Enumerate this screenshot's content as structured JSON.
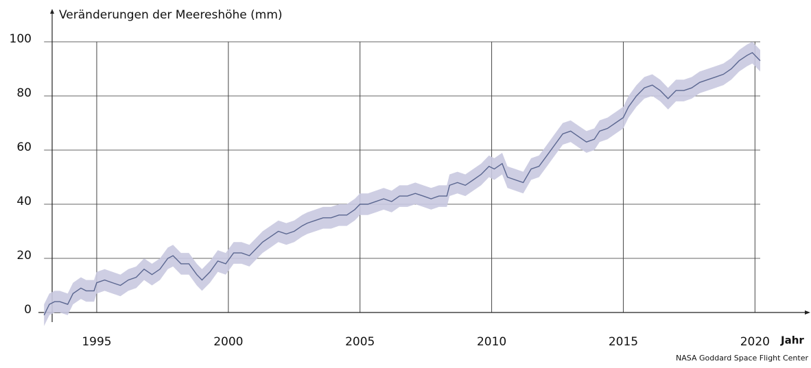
{
  "chart_data": {
    "type": "line",
    "title": "Veränderungen der Meereshöhe (mm)",
    "x_label": "Jahr",
    "source": "NASA Goddard Space Flight Center",
    "x": [
      1993.0,
      1993.2,
      1993.4,
      1993.6,
      1993.9,
      1994.1,
      1994.4,
      1994.6,
      1994.9,
      1995.0,
      1995.3,
      1995.6,
      1995.9,
      1996.2,
      1996.5,
      1996.8,
      1997.1,
      1997.4,
      1997.7,
      1997.9,
      1998.2,
      1998.5,
      1998.8,
      1999.0,
      1999.3,
      1999.6,
      1999.9,
      2000.2,
      2000.5,
      2000.8,
      2001.0,
      2001.3,
      2001.6,
      2001.9,
      2002.2,
      2002.5,
      2002.8,
      2003.0,
      2003.3,
      2003.6,
      2003.9,
      2004.2,
      2004.5,
      2004.8,
      2005.0,
      2005.3,
      2005.6,
      2005.9,
      2006.2,
      2006.5,
      2006.8,
      2007.1,
      2007.4,
      2007.7,
      2008.0,
      2008.3,
      2008.4,
      2008.7,
      2009.0,
      2009.3,
      2009.6,
      2009.9,
      2010.1,
      2010.4,
      2010.6,
      2010.9,
      2011.2,
      2011.5,
      2011.8,
      2012.1,
      2012.4,
      2012.7,
      2013.0,
      2013.3,
      2013.6,
      2013.9,
      2014.1,
      2014.4,
      2014.7,
      2015.0,
      2015.2,
      2015.5,
      2015.8,
      2016.1,
      2016.4,
      2016.7,
      2017.0,
      2017.3,
      2017.6,
      2017.9,
      2018.2,
      2018.5,
      2018.8,
      2019.1,
      2019.4,
      2019.7,
      2019.9,
      2020.1,
      2020.2
    ],
    "series": [
      {
        "color": "#5a6690",
        "band_color": "#c9c9e0",
        "values": [
          -1,
          3,
          4,
          4,
          3,
          7,
          9,
          8,
          8,
          11,
          12,
          11,
          10,
          12,
          13,
          16,
          14,
          16,
          20,
          21,
          18,
          18,
          14,
          12,
          15,
          19,
          18,
          22,
          22,
          21,
          23,
          26,
          28,
          30,
          29,
          30,
          32,
          33,
          34,
          35,
          35,
          36,
          36,
          38,
          40,
          40,
          41,
          42,
          41,
          43,
          43,
          44,
          43,
          42,
          43,
          43,
          47,
          48,
          47,
          49,
          51,
          54,
          53,
          55,
          50,
          49,
          48,
          53,
          54,
          58,
          62,
          66,
          67,
          65,
          63,
          64,
          67,
          68,
          70,
          72,
          76,
          80,
          83,
          84,
          82,
          79,
          82,
          82,
          83,
          85,
          86,
          87,
          88,
          90,
          93,
          95,
          96,
          94,
          93
        ]
      }
    ],
    "band_halfwidth": 4,
    "xlim": [
      1993,
      2020.2
    ],
    "xticks": [
      1995,
      2000,
      2005,
      2010,
      2015,
      2020
    ],
    "ylim": [
      0,
      100
    ],
    "yticks": [
      0,
      20,
      40,
      60,
      80,
      100
    ],
    "grid": true
  }
}
